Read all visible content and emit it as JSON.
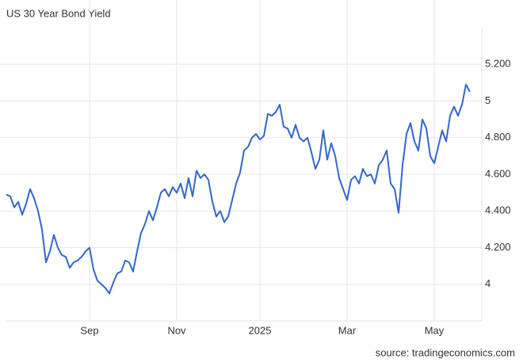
{
  "chart_data": {
    "type": "line",
    "title": "US 30 Year Bond Yield",
    "source": "source: tradingeconomics.com",
    "categories": [
      null,
      null,
      null,
      null,
      null,
      null,
      null,
      null,
      null,
      null,
      null,
      null,
      null,
      null,
      null,
      null,
      null,
      null,
      null,
      null,
      null,
      "Sep",
      null,
      null,
      null,
      null,
      null,
      null,
      null,
      null,
      null,
      null,
      null,
      null,
      null,
      null,
      null,
      null,
      null,
      null,
      null,
      null,
      null,
      "Nov",
      null,
      null,
      null,
      null,
      null,
      null,
      null,
      null,
      null,
      null,
      null,
      null,
      null,
      null,
      null,
      null,
      null,
      null,
      null,
      null,
      "2025",
      null,
      null,
      null,
      null,
      null,
      null,
      null,
      null,
      null,
      null,
      null,
      null,
      null,
      null,
      null,
      null,
      null,
      null,
      null,
      null,
      null,
      "Mar",
      null,
      null,
      null,
      null,
      null,
      null,
      null,
      null,
      null,
      null,
      null,
      null,
      null,
      null,
      null,
      null,
      null,
      null,
      null,
      null,
      null,
      "May",
      null,
      null,
      null,
      null,
      null,
      null,
      null,
      null,
      null
    ],
    "values": [
      4.49,
      4.48,
      4.42,
      4.45,
      4.38,
      4.44,
      4.52,
      4.47,
      4.4,
      4.3,
      4.12,
      4.18,
      4.27,
      4.2,
      4.16,
      4.15,
      4.09,
      4.12,
      4.13,
      4.15,
      4.18,
      4.2,
      4.08,
      4.02,
      4.0,
      3.98,
      3.95,
      4.01,
      4.06,
      4.07,
      4.13,
      4.12,
      4.07,
      4.18,
      4.28,
      4.33,
      4.4,
      4.35,
      4.42,
      4.5,
      4.52,
      4.48,
      4.53,
      4.5,
      4.55,
      4.47,
      4.58,
      4.48,
      4.62,
      4.58,
      4.6,
      4.57,
      4.45,
      4.37,
      4.4,
      4.34,
      4.37,
      4.46,
      4.55,
      4.61,
      4.73,
      4.75,
      4.8,
      4.82,
      4.79,
      4.81,
      4.93,
      4.92,
      4.94,
      4.98,
      4.86,
      4.85,
      4.8,
      4.87,
      4.8,
      4.78,
      4.8,
      4.72,
      4.63,
      4.68,
      4.84,
      4.68,
      4.77,
      4.7,
      4.58,
      4.52,
      4.46,
      4.57,
      4.59,
      4.55,
      4.63,
      4.59,
      4.6,
      4.55,
      4.65,
      4.68,
      4.73,
      4.55,
      4.52,
      4.39,
      4.65,
      4.82,
      4.88,
      4.78,
      4.73,
      4.9,
      4.85,
      4.7,
      4.66,
      4.75,
      4.84,
      4.78,
      4.92,
      4.97,
      4.92,
      4.98,
      5.09,
      5.05
    ],
    "color": "#3366cc",
    "ylim": [
      3.8,
      5.4
    ],
    "yticks": [
      4,
      {
        "value": 4.2,
        "label": "4.200"
      },
      {
        "value": 4.4,
        "label": "4.400"
      },
      {
        "value": 4.6,
        "label": "4.600"
      },
      {
        "value": 4.8,
        "label": "4.800"
      },
      5,
      {
        "value": 5.2,
        "label": "5.200"
      }
    ],
    "grid": true
  }
}
